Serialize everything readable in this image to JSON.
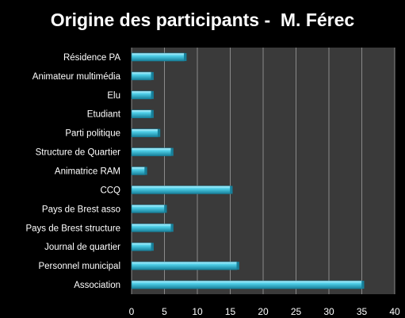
{
  "chart_data": {
    "type": "bar",
    "orientation": "horizontal",
    "title": "Origine des participants -  M. Férec",
    "categories": [
      "Résidence PA",
      "Animateur multimédia",
      "Elu",
      "Etudiant",
      "Parti politique",
      "Structure de Quartier",
      "Animatrice RAM",
      "CCQ",
      "Pays de Brest asso",
      "Pays de Brest structure",
      "Journal de quartier",
      "Personnel municipal",
      "Association"
    ],
    "values": [
      8,
      3,
      3,
      3,
      4,
      6,
      2,
      15,
      5,
      6,
      3,
      16,
      35
    ],
    "xlim": [
      0,
      40
    ],
    "xticks": [
      0,
      5,
      10,
      15,
      20,
      25,
      30,
      35,
      40
    ],
    "grid": true,
    "legend": "none",
    "colors": {
      "background": "#000000",
      "plot_area": "#3a3a3a",
      "grid": "#8a8a8a",
      "bar_light": "#bff3ff",
      "bar_mid": "#4fcfe8",
      "bar_dark": "#177f99",
      "text": "#ffffff"
    }
  }
}
